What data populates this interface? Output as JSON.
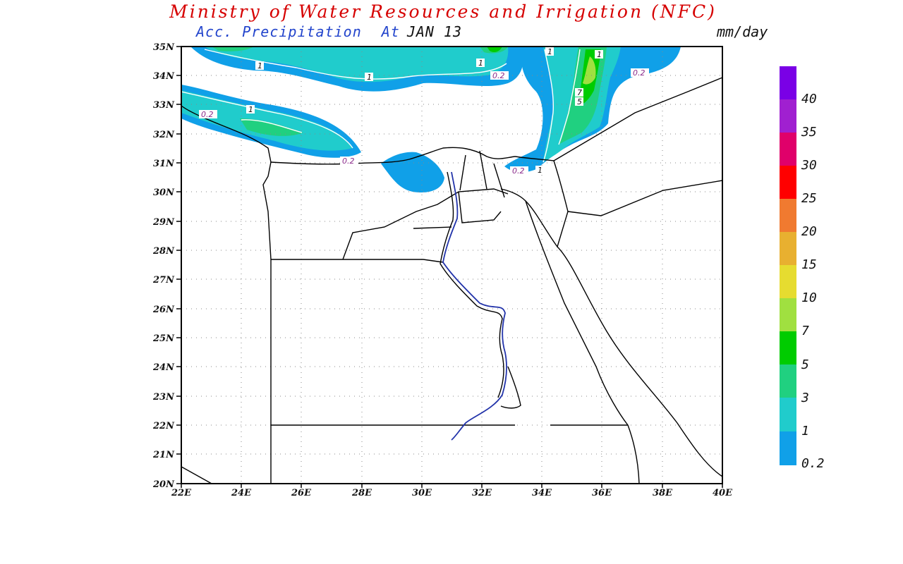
{
  "header": {
    "title": "Ministry of Water Resources and Irrigation (NFC)",
    "product": "Acc. Precipitation",
    "at_label": "At",
    "date": "JAN 13",
    "units": "mm/day"
  },
  "map": {
    "lat_labels": [
      "35N",
      "34N",
      "33N",
      "32N",
      "31N",
      "30N",
      "29N",
      "28N",
      "27N",
      "26N",
      "25N",
      "24N",
      "23N",
      "22N",
      "21N",
      "20N"
    ],
    "lon_labels": [
      "22E",
      "24E",
      "26E",
      "28E",
      "30E",
      "32E",
      "34E",
      "36E",
      "38E",
      "40E"
    ],
    "contour_labels": [
      {
        "text": "1",
        "kind": "1"
      },
      {
        "text": "1",
        "kind": "1"
      },
      {
        "text": "1",
        "kind": "1"
      },
      {
        "text": "0.2",
        "kind": "0.2"
      },
      {
        "text": "1",
        "kind": "1"
      },
      {
        "text": "0.2",
        "kind": "0.2"
      },
      {
        "text": "1",
        "kind": "1"
      },
      {
        "text": "0.2",
        "kind": "0.2"
      },
      {
        "text": "1",
        "kind": "1"
      },
      {
        "text": "0.2",
        "kind": "0.2"
      },
      {
        "text": "0.2",
        "kind": "0.2"
      },
      {
        "text": "1",
        "kind": "1"
      },
      {
        "text": "7",
        "kind": "1"
      },
      {
        "text": "5",
        "kind": "1"
      }
    ]
  },
  "legend": {
    "labels": [
      "40",
      "35",
      "30",
      "25",
      "20",
      "15",
      "10",
      "7",
      "5",
      "3",
      "1",
      "0.2"
    ],
    "colors": [
      "#7a00e6",
      "#a020d0",
      "#e0006a",
      "#ff0000",
      "#f07a30",
      "#e8b030",
      "#e6dc30",
      "#a0e040",
      "#00cc00",
      "#20d080",
      "#20cccc",
      "#10a0e8"
    ]
  }
}
